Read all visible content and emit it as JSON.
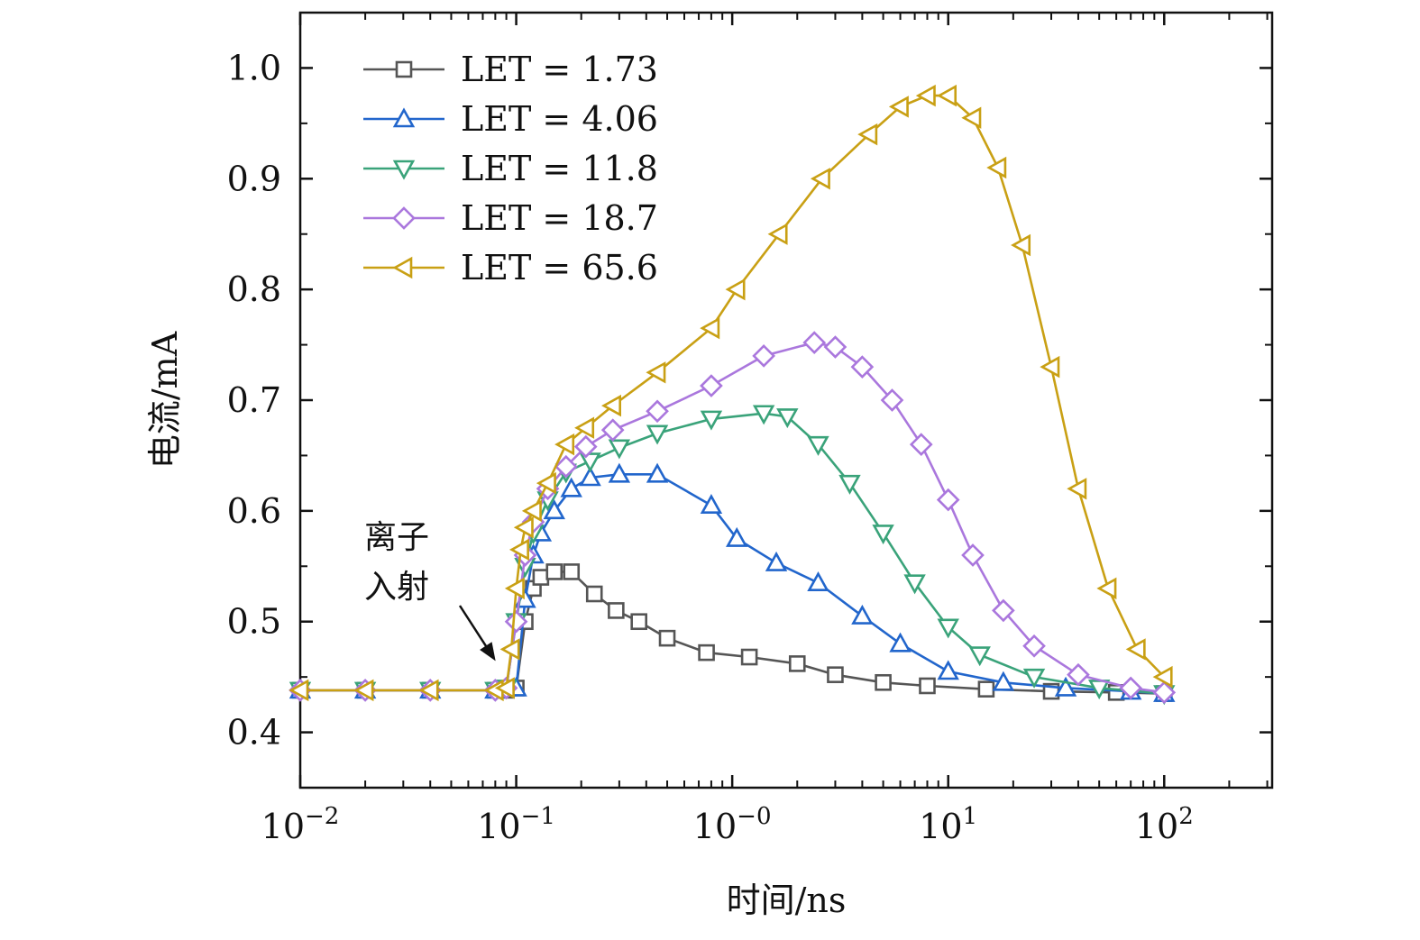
{
  "chart_data": {
    "type": "line",
    "title": "",
    "xlabel": "时间/ns",
    "ylabel": "电流/mA",
    "xscale": "log",
    "xlim": [
      0.01,
      316
    ],
    "ylim": [
      0.35,
      1.05
    ],
    "x_ticks": [
      {
        "value": 0.01,
        "base": "10",
        "exp": "−2"
      },
      {
        "value": 0.1,
        "base": "10",
        "exp": "−1"
      },
      {
        "value": 1,
        "base": "10",
        "exp": "−0"
      },
      {
        "value": 10,
        "base": "10",
        "exp": "1"
      },
      {
        "value": 100,
        "base": "10",
        "exp": "2"
      }
    ],
    "y_ticks": [
      "0.4",
      "0.5",
      "0.6",
      "0.7",
      "0.8",
      "0.9",
      "1.0"
    ],
    "grid": false,
    "legend_position": "top-left",
    "annotation": {
      "lines": [
        "离子",
        "入射"
      ],
      "arrow_to": [
        0.085,
        0.44
      ]
    },
    "series": [
      {
        "name": "LET = 1.73",
        "marker": "square",
        "color": "#555555",
        "x": [
          0.01,
          0.02,
          0.04,
          0.08,
          0.09,
          0.1,
          0.11,
          0.12,
          0.13,
          0.15,
          0.18,
          0.23,
          0.29,
          0.37,
          0.5,
          0.76,
          1.2,
          2,
          3,
          5,
          8,
          15,
          30,
          60,
          100
        ],
        "y": [
          0.438,
          0.438,
          0.438,
          0.438,
          0.438,
          0.44,
          0.5,
          0.53,
          0.54,
          0.545,
          0.545,
          0.525,
          0.51,
          0.5,
          0.485,
          0.472,
          0.468,
          0.462,
          0.452,
          0.445,
          0.442,
          0.439,
          0.437,
          0.436,
          0.435
        ]
      },
      {
        "name": "LET = 4.06",
        "marker": "triangle-up",
        "color": "#2266cc",
        "x": [
          0.01,
          0.02,
          0.04,
          0.08,
          0.09,
          0.1,
          0.11,
          0.12,
          0.13,
          0.15,
          0.18,
          0.22,
          0.3,
          0.45,
          0.8,
          1.05,
          1.6,
          2.5,
          4,
          6,
          10,
          18,
          35,
          70,
          100
        ],
        "y": [
          0.438,
          0.438,
          0.438,
          0.438,
          0.44,
          0.44,
          0.52,
          0.56,
          0.58,
          0.6,
          0.62,
          0.63,
          0.633,
          0.633,
          0.605,
          0.575,
          0.553,
          0.535,
          0.505,
          0.48,
          0.455,
          0.445,
          0.44,
          0.437,
          0.435
        ]
      },
      {
        "name": "LET = 11.8",
        "marker": "triangle-down",
        "color": "#3aa37a",
        "x": [
          0.01,
          0.02,
          0.04,
          0.08,
          0.09,
          0.1,
          0.11,
          0.12,
          0.14,
          0.17,
          0.22,
          0.3,
          0.45,
          0.8,
          1.4,
          1.8,
          2.5,
          3.5,
          5,
          7,
          10,
          14,
          25,
          50,
          100
        ],
        "y": [
          0.438,
          0.438,
          0.438,
          0.438,
          0.44,
          0.5,
          0.55,
          0.58,
          0.61,
          0.635,
          0.645,
          0.657,
          0.67,
          0.683,
          0.688,
          0.685,
          0.66,
          0.625,
          0.58,
          0.535,
          0.495,
          0.47,
          0.45,
          0.44,
          0.435
        ]
      },
      {
        "name": "LET = 18.7",
        "marker": "diamond",
        "color": "#aa77dd",
        "x": [
          0.01,
          0.02,
          0.04,
          0.08,
          0.09,
          0.1,
          0.11,
          0.12,
          0.14,
          0.17,
          0.21,
          0.28,
          0.45,
          0.8,
          1.4,
          2.4,
          3,
          4,
          5.5,
          7.5,
          10,
          13,
          18,
          25,
          40,
          70,
          100
        ],
        "y": [
          0.438,
          0.438,
          0.438,
          0.438,
          0.44,
          0.5,
          0.56,
          0.59,
          0.62,
          0.64,
          0.658,
          0.673,
          0.69,
          0.713,
          0.74,
          0.752,
          0.748,
          0.73,
          0.7,
          0.66,
          0.61,
          0.56,
          0.51,
          0.478,
          0.452,
          0.44,
          0.436
        ]
      },
      {
        "name": "LET = 65.6",
        "marker": "triangle-left",
        "color": "#c9a014",
        "x": [
          0.01,
          0.02,
          0.04,
          0.08,
          0.09,
          0.095,
          0.1,
          0.105,
          0.11,
          0.12,
          0.14,
          0.17,
          0.21,
          0.28,
          0.45,
          0.8,
          1.05,
          1.65,
          2.6,
          4.3,
          6,
          8,
          10,
          13,
          17,
          22,
          30,
          40,
          55,
          75,
          100
        ],
        "y": [
          0.438,
          0.438,
          0.438,
          0.438,
          0.44,
          0.475,
          0.53,
          0.565,
          0.585,
          0.6,
          0.625,
          0.66,
          0.675,
          0.695,
          0.725,
          0.765,
          0.8,
          0.85,
          0.9,
          0.94,
          0.965,
          0.975,
          0.975,
          0.955,
          0.91,
          0.84,
          0.73,
          0.62,
          0.53,
          0.475,
          0.45
        ]
      }
    ]
  }
}
